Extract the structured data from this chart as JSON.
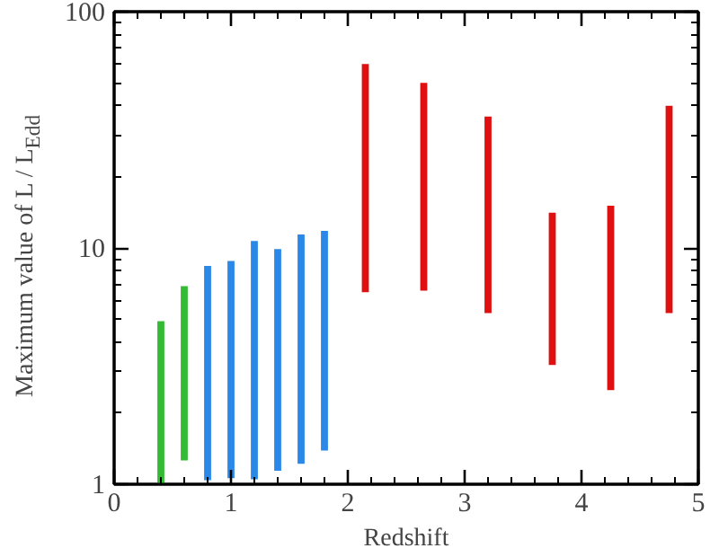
{
  "chart_data": {
    "type": "bar",
    "xlabel": "Redshift",
    "ylabel": "Maximum value of L / L$_{Edd}$",
    "log": "y",
    "xlim": [
      0,
      5
    ],
    "xticks": [
      0,
      1,
      2,
      3,
      4,
      5
    ],
    "ylim": [
      1,
      100
    ],
    "yticks": [
      1,
      10,
      100
    ],
    "grid": false,
    "series": [
      {
        "color": "#33bb33",
        "x": [
          0.4,
          0.6
        ],
        "base": [
          1.0,
          1.26
        ],
        "values": [
          3.9,
          5.64
        ]
      },
      {
        "color": "#2a88e8",
        "x": [
          0.8,
          1.0,
          1.2,
          1.4,
          1.6,
          1.8
        ],
        "base": [
          1.04,
          1.06,
          1.05,
          1.14,
          1.22,
          1.39
        ],
        "values": [
          7.36,
          7.74,
          9.65,
          8.76,
          10.18,
          10.41
        ]
      },
      {
        "color": "#e01010",
        "x": [
          2.15,
          2.65,
          3.2,
          3.75,
          4.25,
          4.75
        ],
        "base": [
          6.5,
          6.6,
          5.3,
          3.2,
          2.5,
          5.3
        ],
        "values": [
          53.5,
          43.4,
          30.7,
          10.9,
          12.6,
          34.7
        ]
      }
    ]
  }
}
